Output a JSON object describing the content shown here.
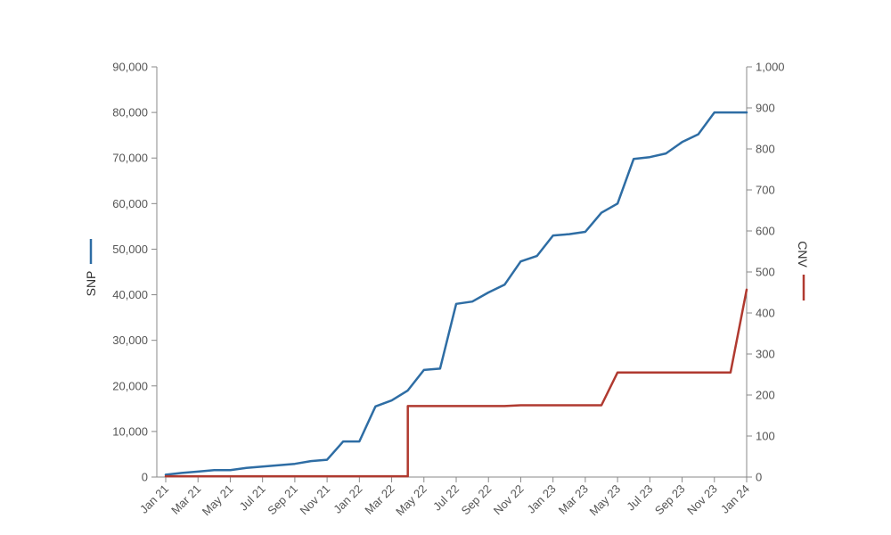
{
  "chart_data": {
    "type": "line",
    "x": [
      "Jan 21",
      "Feb 21",
      "Mar 21",
      "Apr 21",
      "May 21",
      "Jun 21",
      "Jul 21",
      "Aug 21",
      "Sep 21",
      "Oct 21",
      "Nov 21",
      "Dec 21",
      "Jan 22",
      "Feb 22",
      "Mar 22",
      "Apr 22",
      "May 22",
      "Jun 22",
      "Jul 22",
      "Aug 22",
      "Sep 22",
      "Oct 22",
      "Nov 22",
      "Dec 22",
      "Jan 23",
      "Feb 23",
      "Mar 23",
      "Apr 23",
      "May 23",
      "Jun 23",
      "Jul 23",
      "Aug 23",
      "Sep 23",
      "Oct 23",
      "Nov 23",
      "Dec 23",
      "Jan 24"
    ],
    "x_tick_labels": [
      "Jan 21",
      "Mar 21",
      "May 21",
      "Jul 21",
      "Sep 21",
      "Nov 21",
      "Jan 22",
      "Mar 22",
      "May 22",
      "Jul 22",
      "Sep 22",
      "Nov 22",
      "Jan 23",
      "Mar 23",
      "May 23",
      "Jul 23",
      "Sep 23",
      "Nov 23",
      "Jan 24"
    ],
    "series": [
      {
        "name": "SNP",
        "axis": "left",
        "color": "#2e6da4",
        "x": [
          "Jan 21",
          "Feb 21",
          "Mar 21",
          "Apr 21",
          "May 21",
          "Jun 21",
          "Jul 21",
          "Aug 21",
          "Sep 21",
          "Oct 21",
          "Nov 21",
          "Dec 21",
          "Jan 22",
          "Feb 22",
          "Mar 22",
          "Apr 22",
          "May 22",
          "Jun 22",
          "Jul 22",
          "Aug 22",
          "Sep 22",
          "Oct 22",
          "Nov 22",
          "Dec 22",
          "Jan 23",
          "Feb 23",
          "Mar 23",
          "Apr 23",
          "May 23",
          "Jun 23",
          "Jul 23",
          "Aug 23",
          "Sep 23",
          "Oct 23",
          "Nov 23",
          "Dec 23",
          "Jan 24"
        ],
        "values": [
          500,
          900,
          1200,
          1500,
          1500,
          2000,
          2300,
          2600,
          2900,
          3500,
          3800,
          7800,
          7800,
          15500,
          16800,
          19000,
          23500,
          23800,
          38000,
          38500,
          40500,
          42200,
          47300,
          48500,
          53000,
          53300,
          53800,
          58000,
          60000,
          69800,
          70200,
          71000,
          73500,
          75200,
          80000,
          80000,
          80000
        ]
      },
      {
        "name": "CNV",
        "axis": "right",
        "color": "#b03a30",
        "x": [
          "Jan 21",
          "Feb 21",
          "Mar 21",
          "Apr 21",
          "May 21",
          "Jun 21",
          "Jul 21",
          "Aug 21",
          "Sep 21",
          "Oct 21",
          "Nov 21",
          "Dec 21",
          "Jan 22",
          "Feb 22",
          "Mar 22",
          "Apr 22",
          "Apr 22",
          "May 22",
          "Jun 22",
          "Jul 22",
          "Aug 22",
          "Sep 22",
          "Oct 22",
          "Nov 22",
          "Dec 22",
          "Jan 23",
          "Feb 23",
          "Mar 23",
          "Apr 23",
          "May 23",
          "Jun 23",
          "Jul 23",
          "Aug 23",
          "Sep 23",
          "Oct 23",
          "Nov 23",
          "Dec 23",
          "Jan 24"
        ],
        "values": [
          2,
          2,
          2,
          2,
          2,
          2,
          2,
          2,
          2,
          2,
          2,
          2,
          2,
          2,
          2,
          2,
          173,
          173,
          173,
          173,
          173,
          173,
          173,
          175,
          175,
          175,
          175,
          175,
          175,
          255,
          255,
          255,
          255,
          255,
          255,
          255,
          255,
          457
        ]
      }
    ],
    "left_axis": {
      "title": "SNP",
      "ylim": [
        0,
        90000
      ],
      "tick_labels": [
        "0",
        "10,000",
        "20,000",
        "30,000",
        "40,000",
        "50,000",
        "60,000",
        "70,000",
        "80,000",
        "90,000"
      ]
    },
    "right_axis": {
      "title": "CNV",
      "ylim": [
        0,
        1000
      ],
      "tick_labels": [
        "0",
        "100",
        "200",
        "300",
        "400",
        "500",
        "600",
        "700",
        "800",
        "900",
        "1,000"
      ]
    },
    "grid": false,
    "title": "",
    "xlabel": ""
  }
}
